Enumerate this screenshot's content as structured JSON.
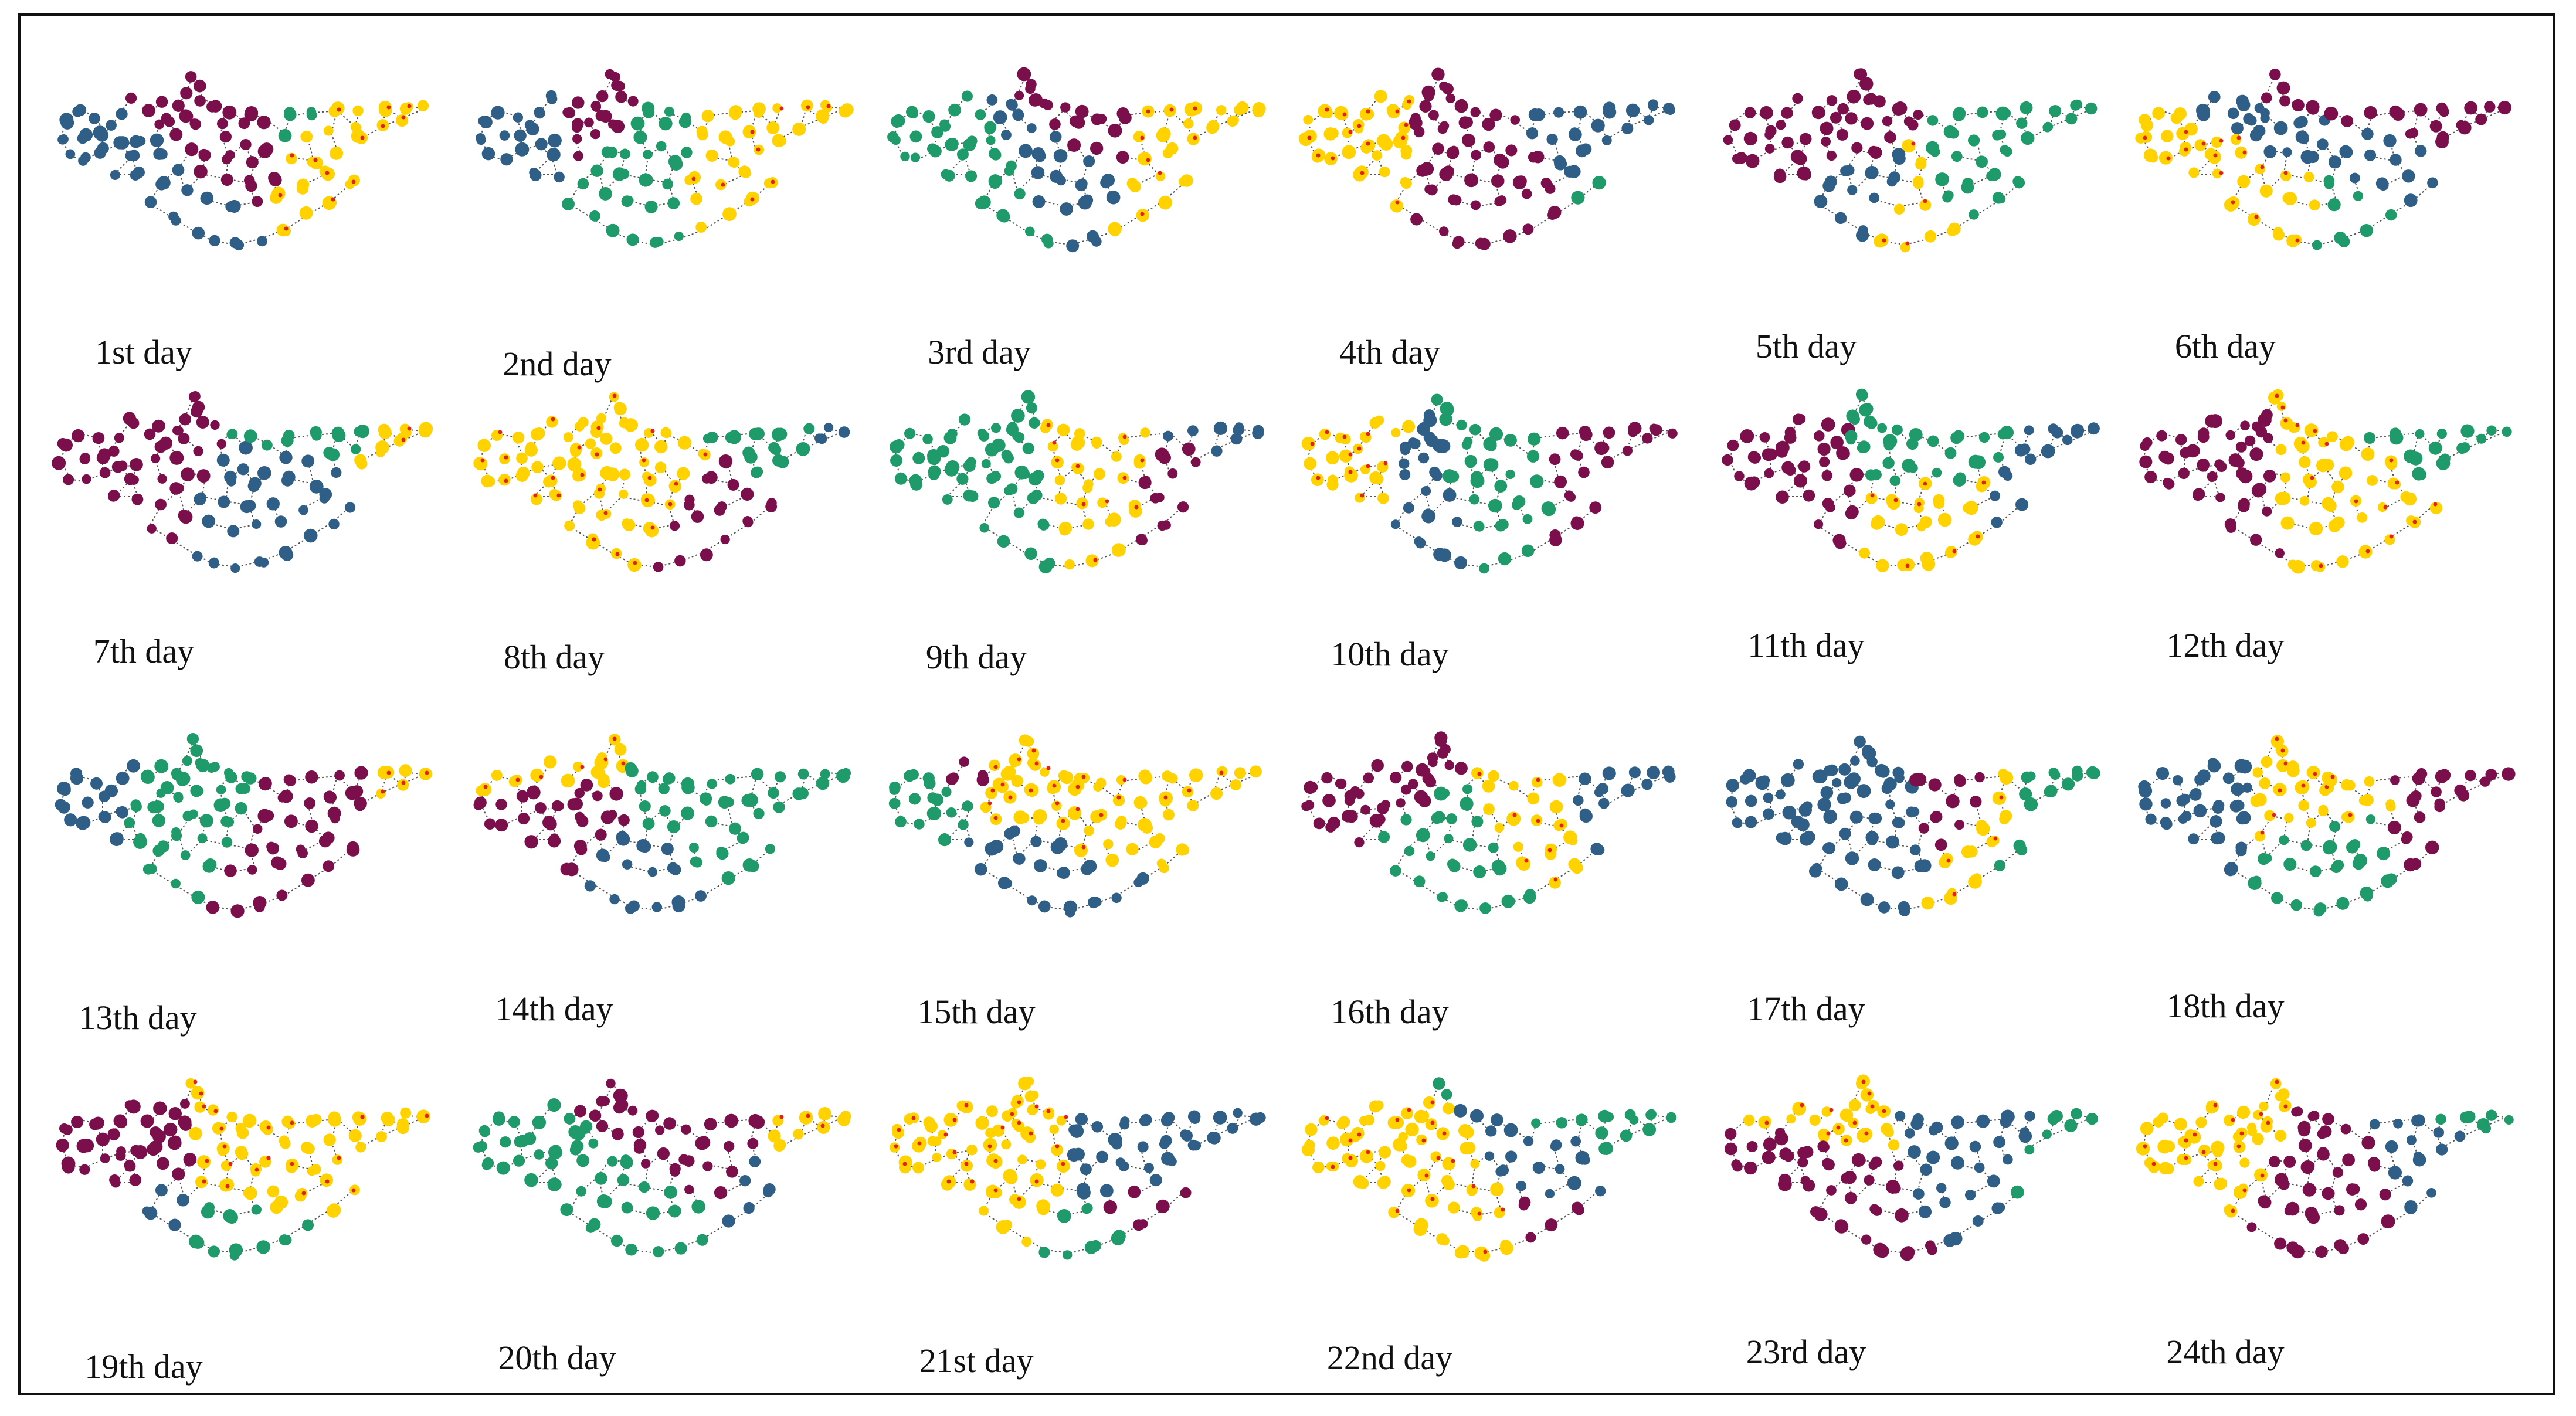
{
  "figure": {
    "panels": [
      {
        "label": "1st day"
      },
      {
        "label": "2nd day"
      },
      {
        "label": "3rd day"
      },
      {
        "label": "4th day"
      },
      {
        "label": "5th day"
      },
      {
        "label": "6th day"
      },
      {
        "label": "7th day"
      },
      {
        "label": "8th day"
      },
      {
        "label": "9th day"
      },
      {
        "label": "10th day"
      },
      {
        "label": "11th day"
      },
      {
        "label": "12th day"
      },
      {
        "label": "13th day"
      },
      {
        "label": "14th day"
      },
      {
        "label": "15th day"
      },
      {
        "label": "16th day"
      },
      {
        "label": "17th day"
      },
      {
        "label": "18th day"
      },
      {
        "label": "19th day"
      },
      {
        "label": "20th day"
      },
      {
        "label": "21st day"
      },
      {
        "label": "22nd day"
      },
      {
        "label": "23rd day"
      },
      {
        "label": "24th day"
      }
    ]
  },
  "colors": {
    "maroon": "#7a0f4b",
    "blue": "#2f5f86",
    "green": "#1f9a6a",
    "yellow": "#ffd200",
    "red": "#e0241b",
    "edge": "#555555"
  }
}
